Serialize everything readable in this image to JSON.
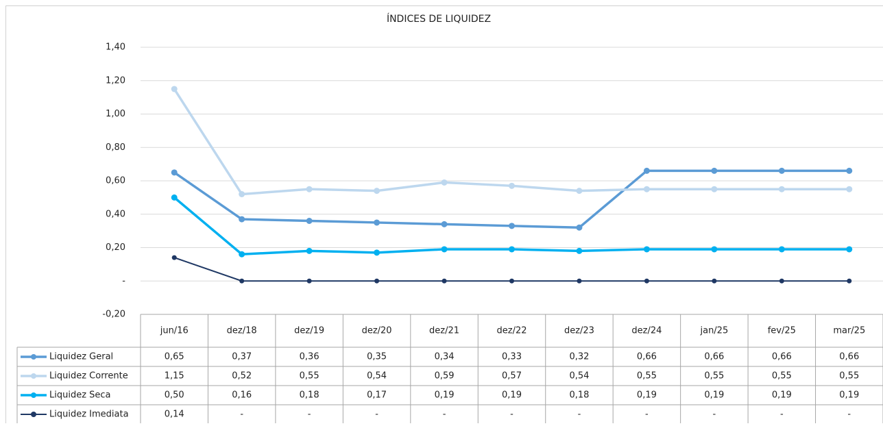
{
  "chart_data": {
    "type": "line",
    "title": "ÍNDICES DE LIQUIDEZ",
    "categories": [
      "jun/16",
      "dez/18",
      "dez/19",
      "dez/20",
      "dez/21",
      "dez/22",
      "dez/23",
      "dez/24",
      "jan/25",
      "fev/25",
      "mar/25"
    ],
    "series": [
      {
        "name": "Liquidez Geral",
        "color": "#5b9bd5",
        "values": [
          0.65,
          0.37,
          0.36,
          0.35,
          0.34,
          0.33,
          0.32,
          0.66,
          0.66,
          0.66,
          0.66
        ],
        "value_labels": [
          "0,65",
          "0,37",
          "0,36",
          "0,35",
          "0,34",
          "0,33",
          "0,32",
          "0,66",
          "0,66",
          "0,66",
          "0,66"
        ]
      },
      {
        "name": "Liquidez Corrente",
        "color": "#bdd7ee",
        "values": [
          1.15,
          0.52,
          0.55,
          0.54,
          0.59,
          0.57,
          0.54,
          0.55,
          0.55,
          0.55,
          0.55
        ],
        "value_labels": [
          "1,15",
          "0,52",
          "0,55",
          "0,54",
          "0,59",
          "0,57",
          "0,54",
          "0,55",
          "0,55",
          "0,55",
          "0,55"
        ]
      },
      {
        "name": "Liquidez Seca",
        "color": "#00b0f0",
        "values": [
          0.5,
          0.16,
          0.18,
          0.17,
          0.19,
          0.19,
          0.18,
          0.19,
          0.19,
          0.19,
          0.19
        ],
        "value_labels": [
          "0,50",
          "0,16",
          "0,18",
          "0,17",
          "0,19",
          "0,19",
          "0,18",
          "0,19",
          "0,19",
          "0,19",
          "0,19"
        ]
      },
      {
        "name": "Liquidez Imediata",
        "color": "#1f3864",
        "values": [
          0.14,
          0,
          0,
          0,
          0,
          0,
          0,
          0,
          0,
          0,
          0
        ],
        "value_labels": [
          "0,14",
          "-",
          "-",
          "-",
          "-",
          "-",
          "-",
          "-",
          "-",
          "-",
          "-"
        ]
      }
    ],
    "ylim": [
      -0.2,
      1.4
    ],
    "yticks": [
      {
        "value": -0.2,
        "label": "-0,20"
      },
      {
        "value": 0,
        "label": "-"
      },
      {
        "value": 0.2,
        "label": "0,20"
      },
      {
        "value": 0.4,
        "label": "0,40"
      },
      {
        "value": 0.6,
        "label": "0,60"
      },
      {
        "value": 0.8,
        "label": "0,80"
      },
      {
        "value": 1.0,
        "label": "1,00"
      },
      {
        "value": 1.2,
        "label": "1,20"
      },
      {
        "value": 1.4,
        "label": "1,40"
      }
    ],
    "grid": true
  }
}
